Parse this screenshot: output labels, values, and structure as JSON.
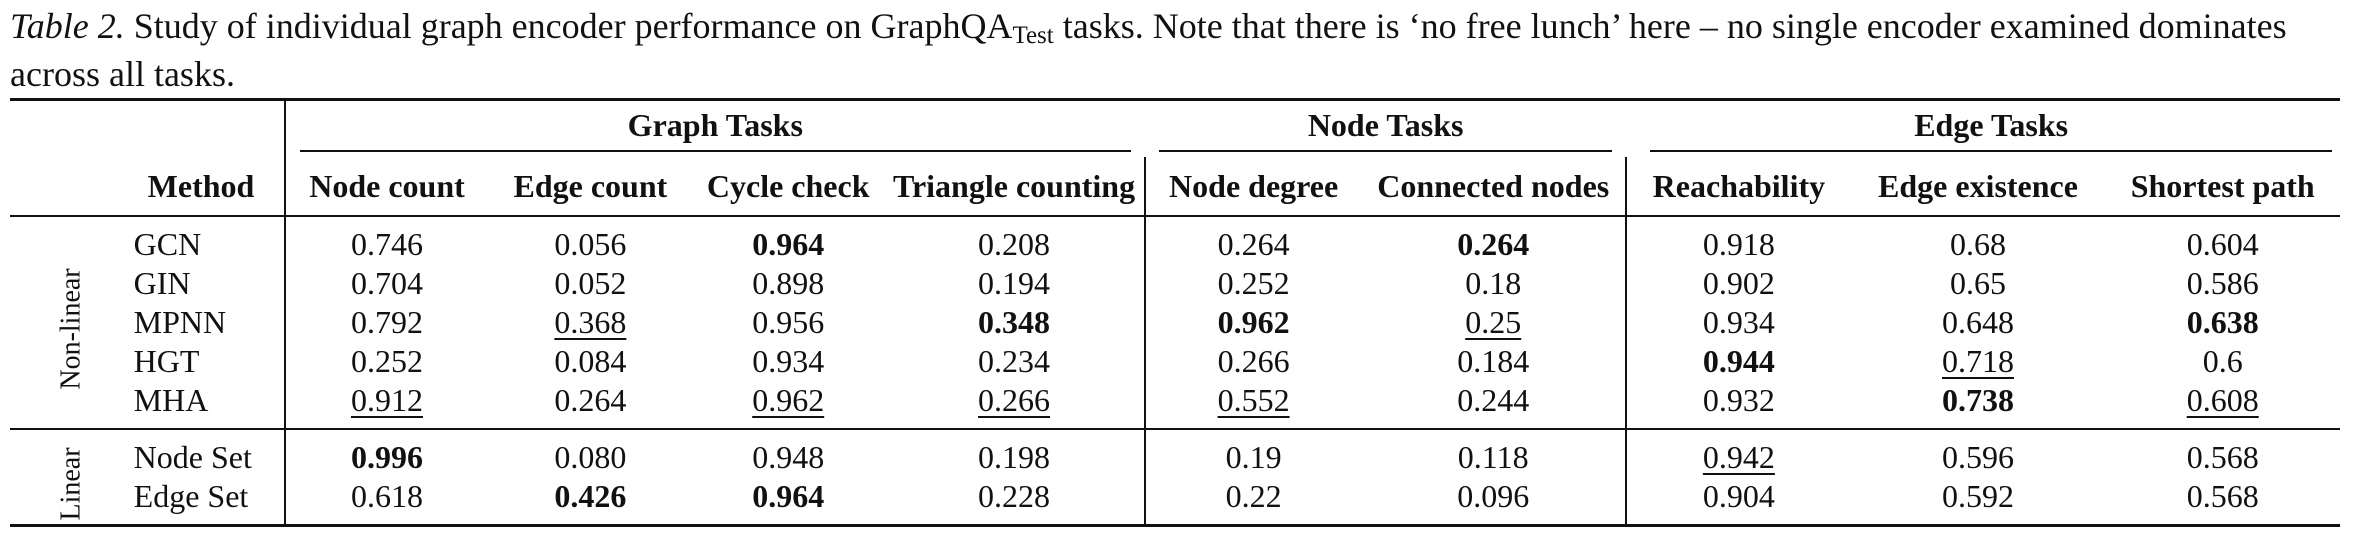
{
  "caption": {
    "label": "Table 2.",
    "text_before_sub": " Study of individual graph encoder performance on GraphQA",
    "subscript": "Test",
    "text_after_sub": " tasks. Note that there is ‘no free lunch’ here – no single encoder examined dominates across all tasks."
  },
  "table": {
    "group_headers": [
      "Graph Tasks",
      "Node Tasks",
      "Edge Tasks"
    ],
    "method_header": "Method",
    "columns": [
      "Node count",
      "Edge count",
      "Cycle check",
      "Triangle counting",
      "Node degree",
      "Connected nodes",
      "Reachability",
      "Edge existence",
      "Shortest path"
    ],
    "row_groups": [
      {
        "label": "Non-linear",
        "rows": [
          {
            "method": "GCN",
            "values": [
              "0.746",
              "0.056",
              "0.964",
              "0.208",
              "0.264",
              "0.264",
              "0.918",
              "0.68",
              "0.604"
            ],
            "style": [
              "",
              "",
              "best",
              "",
              "",
              "best",
              "",
              "",
              ""
            ]
          },
          {
            "method": "GIN",
            "values": [
              "0.704",
              "0.052",
              "0.898",
              "0.194",
              "0.252",
              "0.18",
              "0.902",
              "0.65",
              "0.586"
            ],
            "style": [
              "",
              "",
              "",
              "",
              "",
              "",
              "",
              "",
              ""
            ]
          },
          {
            "method": "MPNN",
            "values": [
              "0.792",
              "0.368",
              "0.956",
              "0.348",
              "0.962",
              "0.25",
              "0.934",
              "0.648",
              "0.638"
            ],
            "style": [
              "",
              "second",
              "",
              "best",
              "best",
              "second",
              "",
              "",
              "best"
            ]
          },
          {
            "method": "HGT",
            "values": [
              "0.252",
              "0.084",
              "0.934",
              "0.234",
              "0.266",
              "0.184",
              "0.944",
              "0.718",
              "0.6"
            ],
            "style": [
              "",
              "",
              "",
              "",
              "",
              "",
              "best",
              "second",
              ""
            ]
          },
          {
            "method": "MHA",
            "values": [
              "0.912",
              "0.264",
              "0.962",
              "0.266",
              "0.552",
              "0.244",
              "0.932",
              "0.738",
              "0.608"
            ],
            "style": [
              "second",
              "",
              "second",
              "second",
              "second",
              "",
              "",
              "best",
              "second"
            ]
          }
        ]
      },
      {
        "label": "Linear",
        "rows": [
          {
            "method": "Node Set",
            "values": [
              "0.996",
              "0.080",
              "0.948",
              "0.198",
              "0.19",
              "0.118",
              "0.942",
              "0.596",
              "0.568"
            ],
            "style": [
              "best",
              "",
              "",
              "",
              "",
              "",
              "second",
              "",
              ""
            ]
          },
          {
            "method": "Edge Set",
            "values": [
              "0.618",
              "0.426",
              "0.964",
              "0.228",
              "0.22",
              "0.096",
              "0.904",
              "0.592",
              "0.568"
            ],
            "style": [
              "",
              "best",
              "best",
              "",
              "",
              "",
              "",
              "",
              ""
            ]
          }
        ]
      }
    ]
  }
}
